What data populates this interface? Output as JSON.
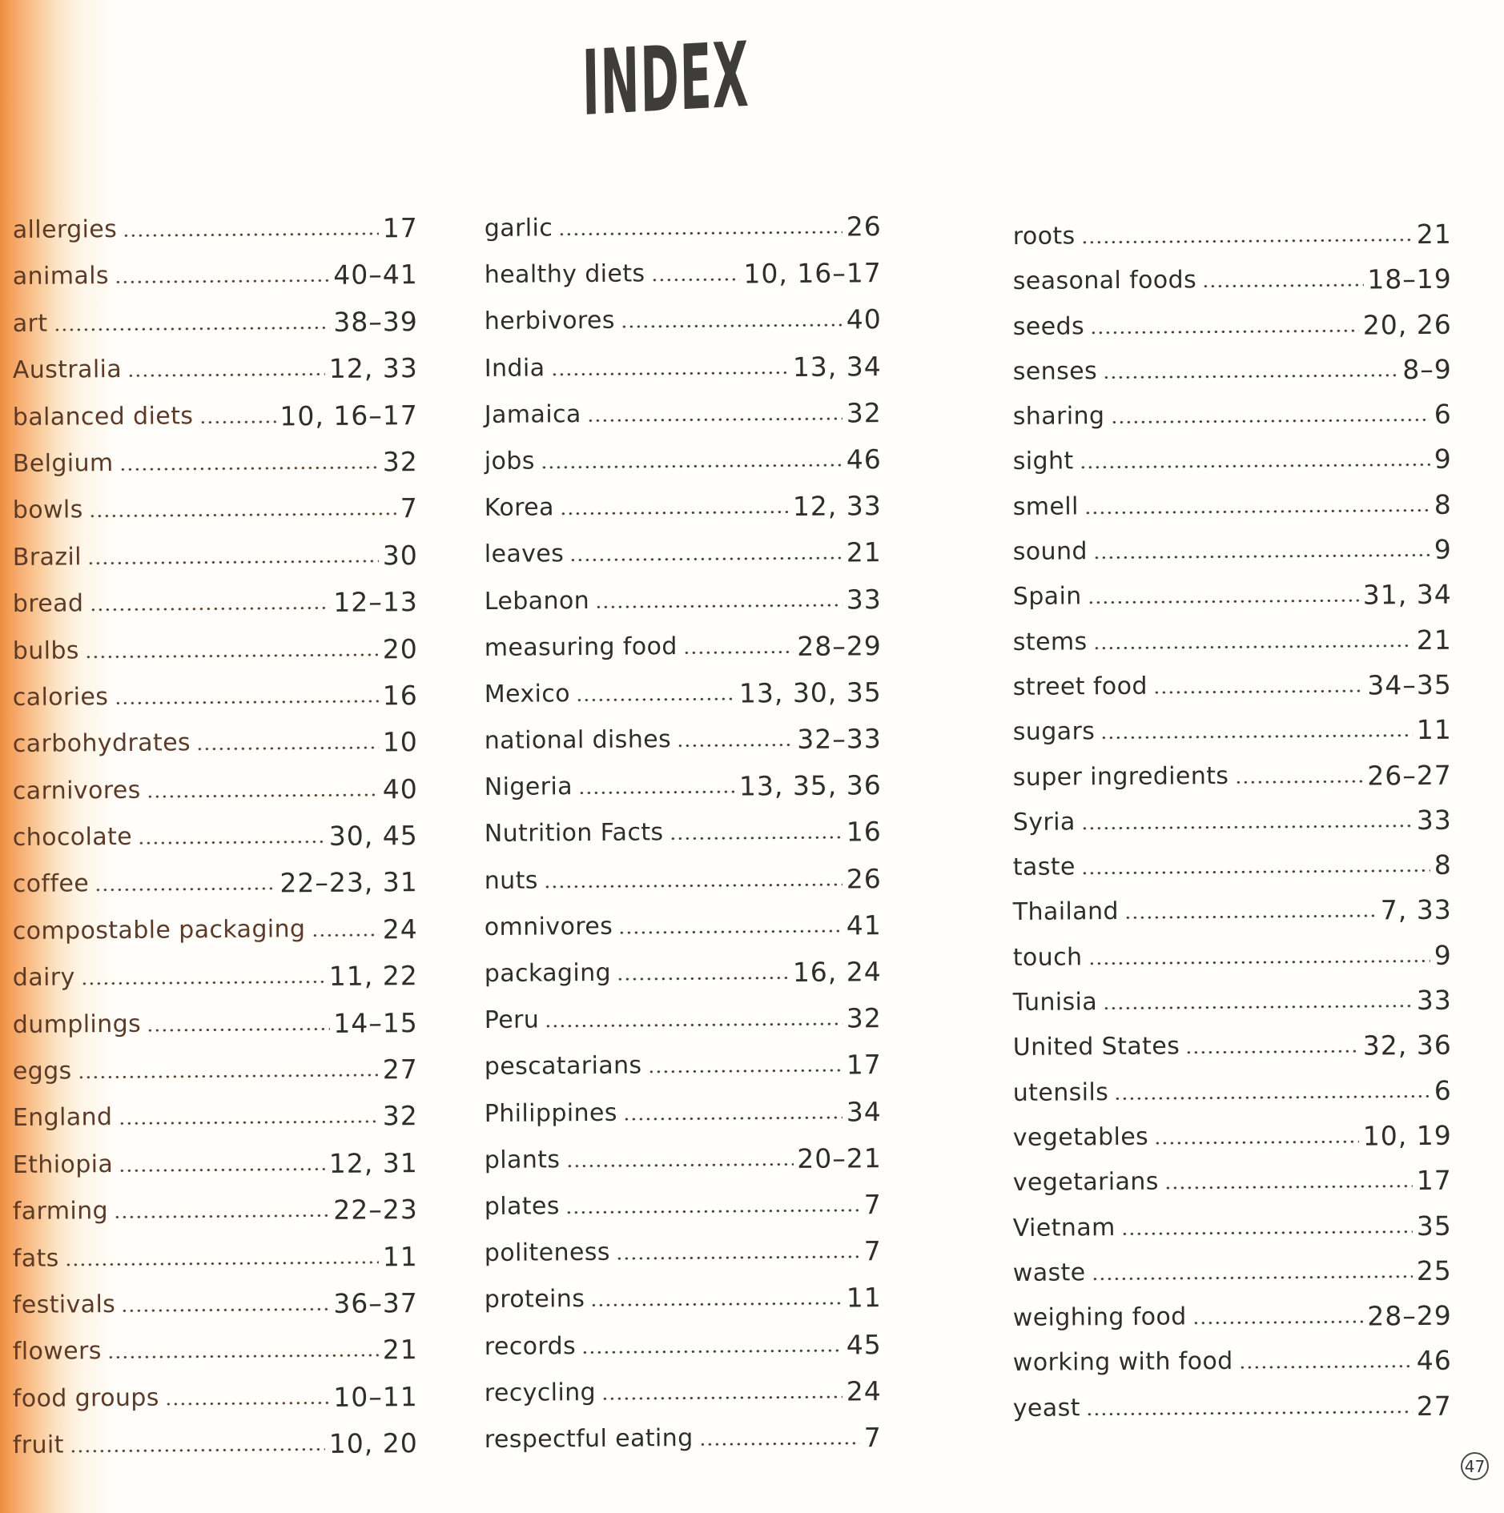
{
  "title": "INDEX",
  "page_number": "47",
  "columns": [
    {
      "entries": [
        {
          "term": "allergies",
          "pages": "17"
        },
        {
          "term": "animals",
          "pages": "40–41"
        },
        {
          "term": "art",
          "pages": "38–39"
        },
        {
          "term": "Australia",
          "pages": "12, 33"
        },
        {
          "term": "balanced diets",
          "pages": "10, 16–17"
        },
        {
          "term": "Belgium",
          "pages": "32"
        },
        {
          "term": "bowls",
          "pages": "7"
        },
        {
          "term": "Brazil",
          "pages": "30"
        },
        {
          "term": "bread",
          "pages": "12–13"
        },
        {
          "term": "bulbs",
          "pages": "20"
        },
        {
          "term": "calories",
          "pages": "16"
        },
        {
          "term": "carbohydrates",
          "pages": "10"
        },
        {
          "term": "carnivores",
          "pages": "40"
        },
        {
          "term": "chocolate",
          "pages": "30, 45"
        },
        {
          "term": "coffee",
          "pages": "22–23, 31"
        },
        {
          "term": "compostable packaging",
          "pages": "24"
        },
        {
          "term": "dairy",
          "pages": "11, 22"
        },
        {
          "term": "dumplings",
          "pages": "14–15"
        },
        {
          "term": "eggs",
          "pages": "27"
        },
        {
          "term": "England",
          "pages": "32"
        },
        {
          "term": "Ethiopia",
          "pages": "12, 31"
        },
        {
          "term": "farming",
          "pages": "22–23"
        },
        {
          "term": "fats",
          "pages": "11"
        },
        {
          "term": "festivals",
          "pages": "36–37"
        },
        {
          "term": "flowers",
          "pages": "21"
        },
        {
          "term": "food groups",
          "pages": "10–11"
        },
        {
          "term": "fruit",
          "pages": "10, 20"
        }
      ]
    },
    {
      "entries": [
        {
          "term": "garlic",
          "pages": "26"
        },
        {
          "term": "healthy diets",
          "pages": "10, 16–17"
        },
        {
          "term": "herbivores",
          "pages": "40"
        },
        {
          "term": "India",
          "pages": "13, 34"
        },
        {
          "term": "Jamaica",
          "pages": "32"
        },
        {
          "term": "jobs",
          "pages": "46"
        },
        {
          "term": "Korea",
          "pages": "12, 33"
        },
        {
          "term": "leaves",
          "pages": "21"
        },
        {
          "term": "Lebanon",
          "pages": "33"
        },
        {
          "term": "measuring food",
          "pages": "28–29"
        },
        {
          "term": "Mexico",
          "pages": "13, 30, 35"
        },
        {
          "term": "national dishes",
          "pages": "32–33"
        },
        {
          "term": "Nigeria",
          "pages": "13, 35, 36"
        },
        {
          "term": "Nutrition Facts",
          "pages": "16"
        },
        {
          "term": "nuts",
          "pages": "26"
        },
        {
          "term": "omnivores",
          "pages": "41"
        },
        {
          "term": "packaging",
          "pages": "16, 24"
        },
        {
          "term": "Peru",
          "pages": "32"
        },
        {
          "term": "pescatarians",
          "pages": "17"
        },
        {
          "term": "Philippines",
          "pages": "34"
        },
        {
          "term": "plants",
          "pages": "20–21"
        },
        {
          "term": "plates",
          "pages": "7"
        },
        {
          "term": "politeness",
          "pages": "7"
        },
        {
          "term": "proteins",
          "pages": "11"
        },
        {
          "term": "records",
          "pages": "45"
        },
        {
          "term": "recycling",
          "pages": "24"
        },
        {
          "term": "respectful eating",
          "pages": "7"
        }
      ]
    },
    {
      "entries": [
        {
          "term": "roots",
          "pages": "21"
        },
        {
          "term": "seasonal foods",
          "pages": "18–19"
        },
        {
          "term": "seeds",
          "pages": "20, 26"
        },
        {
          "term": "senses",
          "pages": "8–9"
        },
        {
          "term": "sharing",
          "pages": "6"
        },
        {
          "term": "sight",
          "pages": "9"
        },
        {
          "term": "smell",
          "pages": "8"
        },
        {
          "term": "sound",
          "pages": "9"
        },
        {
          "term": "Spain",
          "pages": "31, 34"
        },
        {
          "term": "stems",
          "pages": "21"
        },
        {
          "term": "street food",
          "pages": "34–35"
        },
        {
          "term": "sugars",
          "pages": "11"
        },
        {
          "term": "super ingredients",
          "pages": "26–27"
        },
        {
          "term": "Syria",
          "pages": "33"
        },
        {
          "term": "taste",
          "pages": "8"
        },
        {
          "term": "Thailand",
          "pages": "7, 33"
        },
        {
          "term": "touch",
          "pages": "9"
        },
        {
          "term": "Tunisia",
          "pages": "33"
        },
        {
          "term": "United States",
          "pages": "32, 36"
        },
        {
          "term": "utensils",
          "pages": "6"
        },
        {
          "term": "vegetables",
          "pages": "10, 19"
        },
        {
          "term": "vegetarians",
          "pages": "17"
        },
        {
          "term": "Vietnam",
          "pages": "35"
        },
        {
          "term": "waste",
          "pages": "25"
        },
        {
          "term": "weighing food",
          "pages": "28–29"
        },
        {
          "term": "working with food",
          "pages": "46"
        },
        {
          "term": "yeast",
          "pages": "27"
        }
      ]
    }
  ]
}
